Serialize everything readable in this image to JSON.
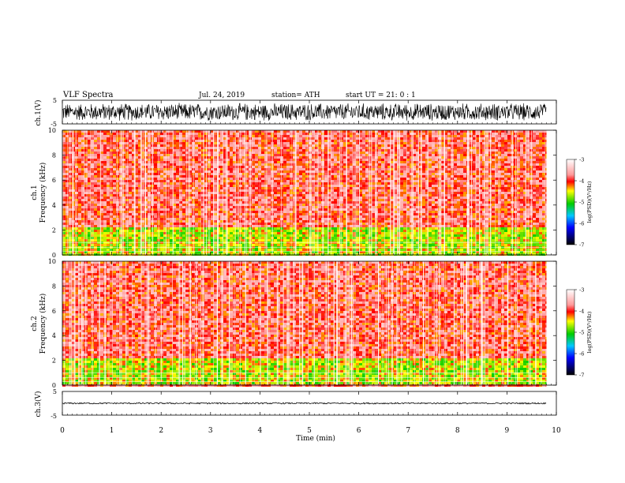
{
  "header": {
    "title": "VLF  Spectra",
    "date": "Jul.  24, 2019",
    "station": "station= ATH",
    "start": "start  UT  =    21: 0   : 1"
  },
  "chart_data": [
    {
      "type": "line",
      "panel": "ch1-waveform",
      "ylabel": "ch.1(V)",
      "yticks": [
        "5",
        "-5"
      ],
      "ylim": [
        -5,
        5
      ],
      "xlim": [
        0,
        10
      ],
      "x_end": 9.8,
      "description_values": "dense noise signal filling roughly -4 to 4 V",
      "amplitude": 4,
      "color": "#000000"
    },
    {
      "type": "heatmap",
      "panel": "ch1-spectrogram",
      "ylabel_channel": "ch.1",
      "ylabel": "Frequency  (kHz)",
      "yticks": [
        "10",
        "8",
        "6",
        "4",
        "2",
        "0"
      ],
      "ylim": [
        0,
        10
      ],
      "xlim": [
        0,
        10
      ],
      "x_end": 9.8,
      "colorbar": {
        "label": "log(PSD)(V²/Hz)",
        "ticks": [
          "-3",
          "-4",
          "-5",
          "-6",
          "-7"
        ],
        "range": [
          -7,
          -3
        ]
      },
      "bands": [
        {
          "from_khz": 0,
          "to_khz": 2.2,
          "level": -4.6
        },
        {
          "from_khz": 2.2,
          "to_khz": 10,
          "level": -3.9
        }
      ]
    },
    {
      "type": "heatmap",
      "panel": "ch2-spectrogram",
      "ylabel_channel": "ch.2",
      "ylabel": "Frequency  (kHz)",
      "yticks": [
        "10",
        "8",
        "6",
        "4",
        "2",
        "0"
      ],
      "ylim": [
        0,
        10
      ],
      "xlim": [
        0,
        10
      ],
      "x_end": 9.8,
      "colorbar": {
        "label": "log(PSD)(V²/Hz)",
        "ticks": [
          "-3",
          "-4",
          "-5",
          "-6",
          "-7"
        ],
        "range": [
          -7,
          -3
        ]
      },
      "bands": [
        {
          "from_khz": 0,
          "to_khz": 2.2,
          "level": -4.6
        },
        {
          "from_khz": 2.2,
          "to_khz": 10,
          "level": -3.9
        }
      ]
    },
    {
      "type": "line",
      "panel": "ch3-waveform",
      "ylabel": "ch.3(V)",
      "yticks": [
        "5",
        "-5"
      ],
      "ylim": [
        -5,
        5
      ],
      "xlim": [
        0,
        10
      ],
      "x_end": 9.8,
      "level": 0,
      "amplitude": 0.3,
      "color": "#000000"
    }
  ],
  "xaxis": {
    "label": "Time  (min)",
    "ticks": [
      "0",
      "1",
      "2",
      "3",
      "4",
      "5",
      "6",
      "7",
      "8",
      "9",
      "10"
    ],
    "range": [
      0,
      10
    ]
  },
  "colors": {
    "background": "#ffffff",
    "axes": "#000000",
    "scale_top": "#ffffff",
    "scale_red": "#ff0000",
    "scale_yellow": "#ffff00",
    "scale_green": "#00cc00",
    "scale_cyan": "#00c8ff",
    "scale_blue": "#0000ff",
    "scale_bottom": "#000000"
  }
}
